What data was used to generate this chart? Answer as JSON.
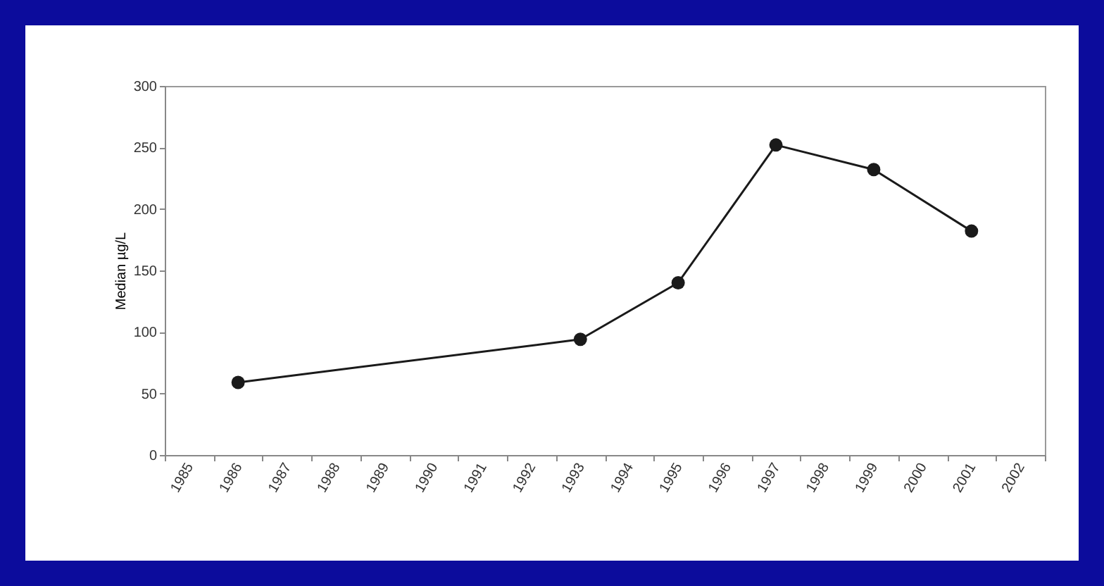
{
  "chart_data": {
    "type": "line",
    "ylabel": "Median µg/L",
    "categories": [
      "1985",
      "1986",
      "1987",
      "1988",
      "1989",
      "1990",
      "1991",
      "1992",
      "1993",
      "1994",
      "1995",
      "1996",
      "1997",
      "1998",
      "1999",
      "2000",
      "2001",
      "2002"
    ],
    "series": [
      {
        "color": "#1a1a1a",
        "values": [
          null,
          59,
          null,
          null,
          null,
          null,
          null,
          null,
          94,
          null,
          140,
          null,
          252,
          null,
          232,
          null,
          182,
          null
        ]
      }
    ],
    "ylim": [
      0,
      300
    ],
    "yticks": [
      0,
      50,
      100,
      150,
      200,
      250,
      300
    ],
    "grid": false,
    "legend": false,
    "marker": "circle",
    "line_style": "solid"
  }
}
